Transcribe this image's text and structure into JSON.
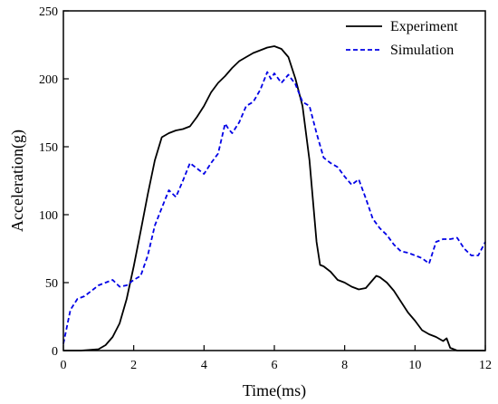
{
  "chart_data": {
    "type": "line",
    "title": "",
    "xlabel": "Time(ms)",
    "ylabel": "Acceleration(g)",
    "xlim": [
      0,
      12
    ],
    "ylim": [
      0,
      250
    ],
    "xticks": [
      0,
      2,
      4,
      6,
      8,
      10,
      12
    ],
    "yticks": [
      0,
      50,
      100,
      150,
      200,
      250
    ],
    "grid": false,
    "legend_position": "top-right",
    "series": [
      {
        "name": "Experiment",
        "color": "#000000",
        "dash": "solid",
        "x": [
          0,
          0.5,
          1.0,
          1.2,
          1.4,
          1.6,
          1.8,
          2.0,
          2.2,
          2.4,
          2.6,
          2.8,
          3.0,
          3.2,
          3.4,
          3.6,
          3.8,
          4.0,
          4.2,
          4.4,
          4.6,
          4.8,
          5.0,
          5.2,
          5.4,
          5.6,
          5.8,
          6.0,
          6.2,
          6.4,
          6.6,
          6.8,
          7.0,
          7.2,
          7.3,
          7.4,
          7.6,
          7.8,
          8.0,
          8.2,
          8.4,
          8.6,
          8.8,
          8.9,
          9.0,
          9.2,
          9.4,
          9.6,
          9.8,
          10.0,
          10.2,
          10.4,
          10.6,
          10.8,
          10.9,
          11.0,
          11.2,
          11.4,
          11.6,
          11.8,
          12.0
        ],
        "y": [
          0,
          0,
          1,
          4,
          10,
          20,
          38,
          62,
          88,
          115,
          140,
          157,
          160,
          162,
          163,
          165,
          172,
          180,
          190,
          197,
          202,
          208,
          213,
          216,
          219,
          221,
          223,
          224,
          222,
          216,
          200,
          180,
          140,
          80,
          63,
          62,
          58,
          52,
          50,
          47,
          45,
          46,
          52,
          55,
          54,
          50,
          44,
          36,
          28,
          22,
          15,
          12,
          10,
          7,
          9,
          2,
          0,
          0,
          0,
          0,
          0
        ]
      },
      {
        "name": "Simulation",
        "color": "#0000e6",
        "dash": "dashed",
        "x": [
          0,
          0.2,
          0.4,
          0.6,
          0.8,
          1.0,
          1.2,
          1.4,
          1.6,
          1.8,
          2.0,
          2.2,
          2.4,
          2.6,
          2.8,
          3.0,
          3.2,
          3.4,
          3.6,
          3.8,
          4.0,
          4.2,
          4.4,
          4.6,
          4.7,
          4.8,
          5.0,
          5.2,
          5.4,
          5.6,
          5.8,
          5.9,
          6.0,
          6.2,
          6.4,
          6.6,
          6.8,
          7.0,
          7.2,
          7.4,
          7.6,
          7.8,
          8.0,
          8.2,
          8.4,
          8.6,
          8.8,
          9.0,
          9.2,
          9.4,
          9.6,
          9.8,
          10.0,
          10.2,
          10.4,
          10.6,
          10.8,
          11.0,
          11.2,
          11.4,
          11.6,
          11.8,
          12.0
        ],
        "y": [
          5,
          30,
          38,
          40,
          44,
          48,
          50,
          52,
          47,
          48,
          52,
          55,
          70,
          92,
          105,
          118,
          113,
          125,
          138,
          134,
          130,
          138,
          145,
          167,
          163,
          160,
          168,
          180,
          183,
          192,
          205,
          200,
          204,
          197,
          203,
          196,
          183,
          180,
          160,
          142,
          138,
          135,
          128,
          122,
          126,
          112,
          97,
          90,
          85,
          78,
          73,
          72,
          70,
          68,
          64,
          80,
          82,
          82,
          83,
          75,
          70,
          70,
          80
        ]
      }
    ]
  }
}
